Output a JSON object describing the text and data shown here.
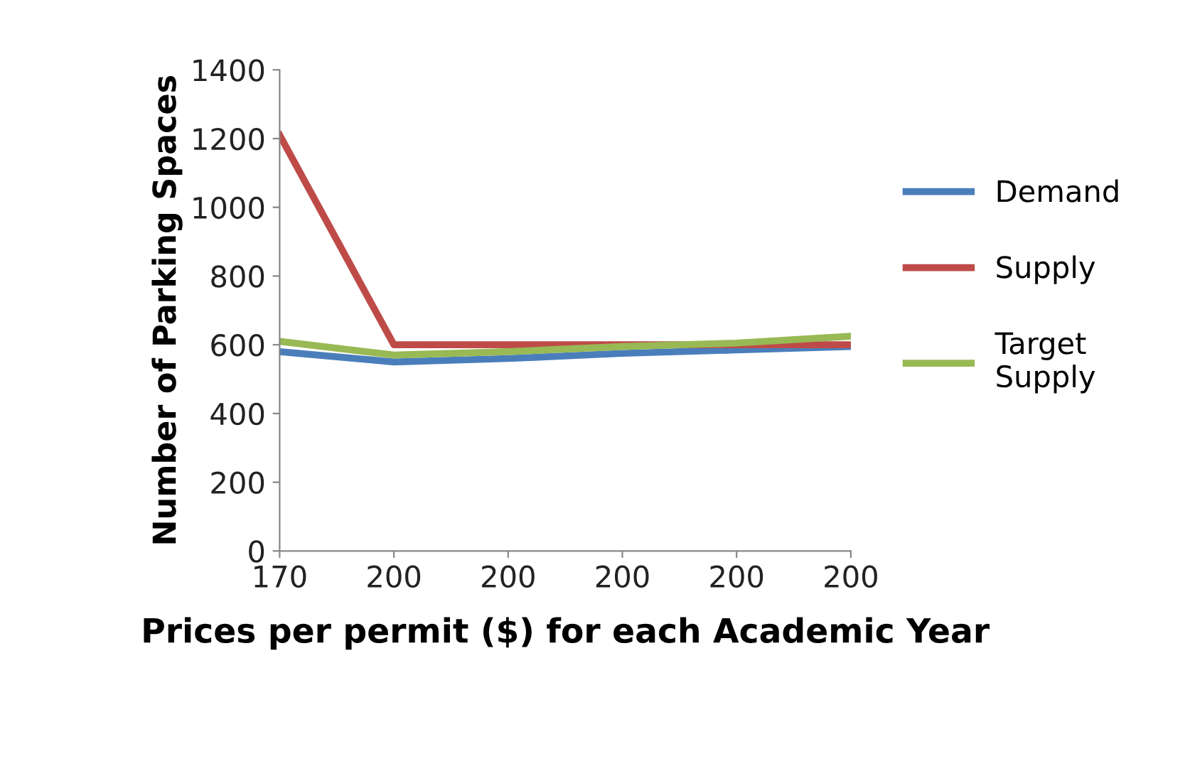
{
  "chart_data": {
    "type": "line",
    "xlabel": "Prices per permit ($) for each Academic Year",
    "ylabel": "Number of Parking Spaces",
    "categories": [
      "170",
      "200",
      "200",
      "200",
      "200",
      "200"
    ],
    "series": [
      {
        "name": "Demand",
        "color": "#4a7ebb",
        "values": [
          580,
          550,
          560,
          575,
          585,
          595
        ]
      },
      {
        "name": "Supply",
        "color": "#be4b48",
        "values": [
          1210,
          600,
          600,
          600,
          600,
          600
        ]
      },
      {
        "name": "Target\nSupply",
        "color": "#98b954",
        "values": [
          610,
          570,
          580,
          595,
          605,
          625
        ]
      }
    ],
    "ylim": [
      0,
      1400
    ],
    "yticks": [
      0,
      200,
      400,
      600,
      800,
      1000,
      1200,
      1400
    ],
    "grid": false,
    "legend": "right",
    "marker": "none",
    "line_style": "solid"
  }
}
